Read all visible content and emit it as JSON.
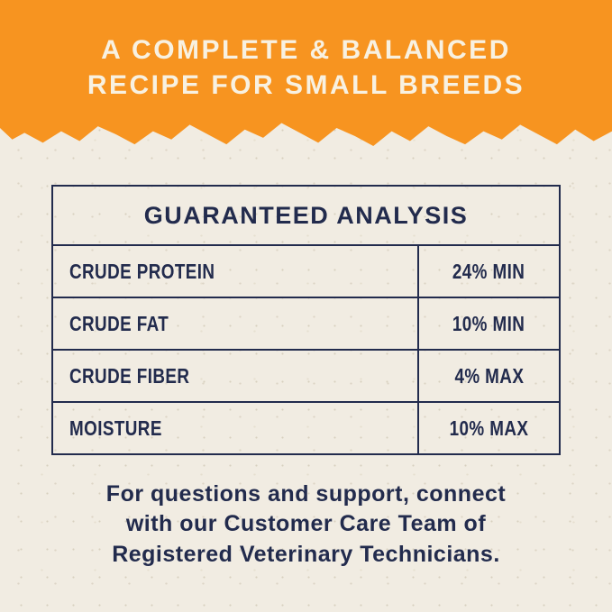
{
  "colors": {
    "orange": "#f79420",
    "cream": "#f1ece2",
    "navy": "#222b4d",
    "header_text": "#f8f1e1"
  },
  "header": {
    "line1": "A COMPLETE & BALANCED",
    "line2": "RECIPE FOR SMALL BREEDS"
  },
  "table": {
    "title": "GUARANTEED ANALYSIS",
    "rows": [
      {
        "label": "CRUDE PROTEIN",
        "value": "24% MIN"
      },
      {
        "label": "CRUDE FAT",
        "value": "10% MIN"
      },
      {
        "label": "CRUDE FIBER",
        "value": "4% MAX"
      },
      {
        "label": "MOISTURE",
        "value": "10% MAX"
      }
    ]
  },
  "footer": {
    "line1": "For questions and support, connect",
    "line2": "with our Customer Care Team of",
    "line3": "Registered Veterinary Technicians."
  }
}
